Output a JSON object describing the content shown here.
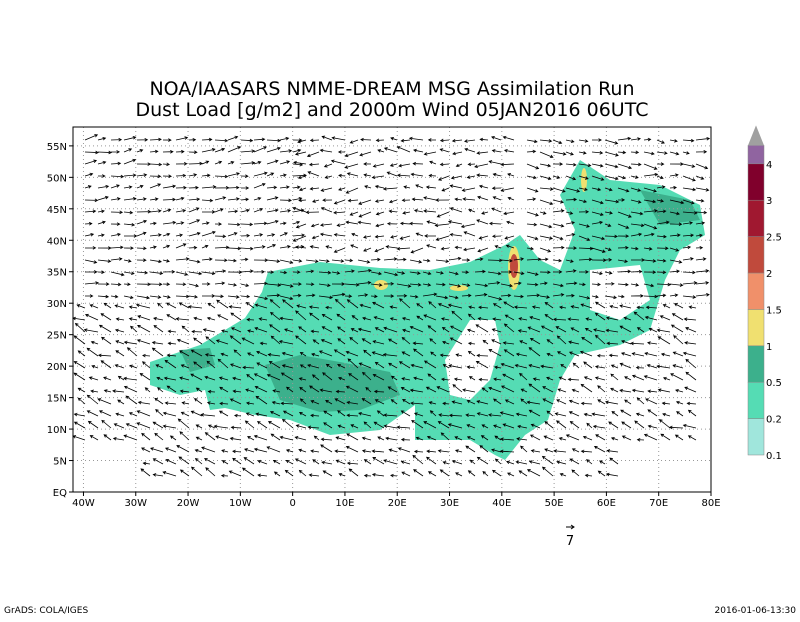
{
  "map": {
    "title": [
      "NOA/IAASARS NMME-DREAM MSG Assimilation Run",
      "Dust Load [g/m2] and 2000m Wind 05JAN2016 06UTC"
    ],
    "xlim": [
      -42,
      80
    ],
    "ylim": [
      0,
      58
    ],
    "xticks": [
      {
        "value": -40,
        "label": "40W"
      },
      {
        "value": -30,
        "label": "30W"
      },
      {
        "value": -20,
        "label": "20W"
      },
      {
        "value": -10,
        "label": "10W"
      },
      0,
      {
        "value": 10,
        "label": "10E"
      },
      {
        "value": 20,
        "label": "20E"
      },
      {
        "value": 30,
        "label": "30E"
      },
      {
        "value": 40,
        "label": "40E"
      },
      {
        "value": 50,
        "label": "50E"
      },
      {
        "value": 60,
        "label": "60E"
      },
      {
        "value": 70,
        "label": "70E"
      },
      {
        "value": 80,
        "label": "80E"
      }
    ],
    "yticks": [
      {
        "value": 0,
        "label": "EQ"
      },
      {
        "value": 5,
        "label": "5N"
      },
      {
        "value": 10,
        "label": "10N"
      },
      {
        "value": 15,
        "label": "15N"
      },
      {
        "value": 20,
        "label": "20N"
      },
      {
        "value": 25,
        "label": "25N"
      },
      {
        "value": 30,
        "label": "30N"
      },
      {
        "value": 35,
        "label": "35N"
      },
      {
        "value": 40,
        "label": "40N"
      },
      {
        "value": 45,
        "label": "45N"
      },
      {
        "value": 50,
        "label": "50N"
      },
      {
        "value": 55,
        "label": "55N"
      }
    ],
    "colorbar": {
      "levels": [
        0.1,
        0.2,
        0.5,
        1,
        1.5,
        2,
        2.5,
        3,
        4
      ],
      "colors": [
        "#a0e6dc",
        "#55dcb4",
        "#3cb08c",
        "#f0e070",
        "#f0906a",
        "#c04a3c",
        "#a01830",
        "#80002c",
        "#9064a0",
        "#a0a0a0"
      ]
    },
    "vector_reference": 7,
    "footer_left": "GrADS: COLA/IGES",
    "footer_right": "2016-01-06-13:30"
  }
}
